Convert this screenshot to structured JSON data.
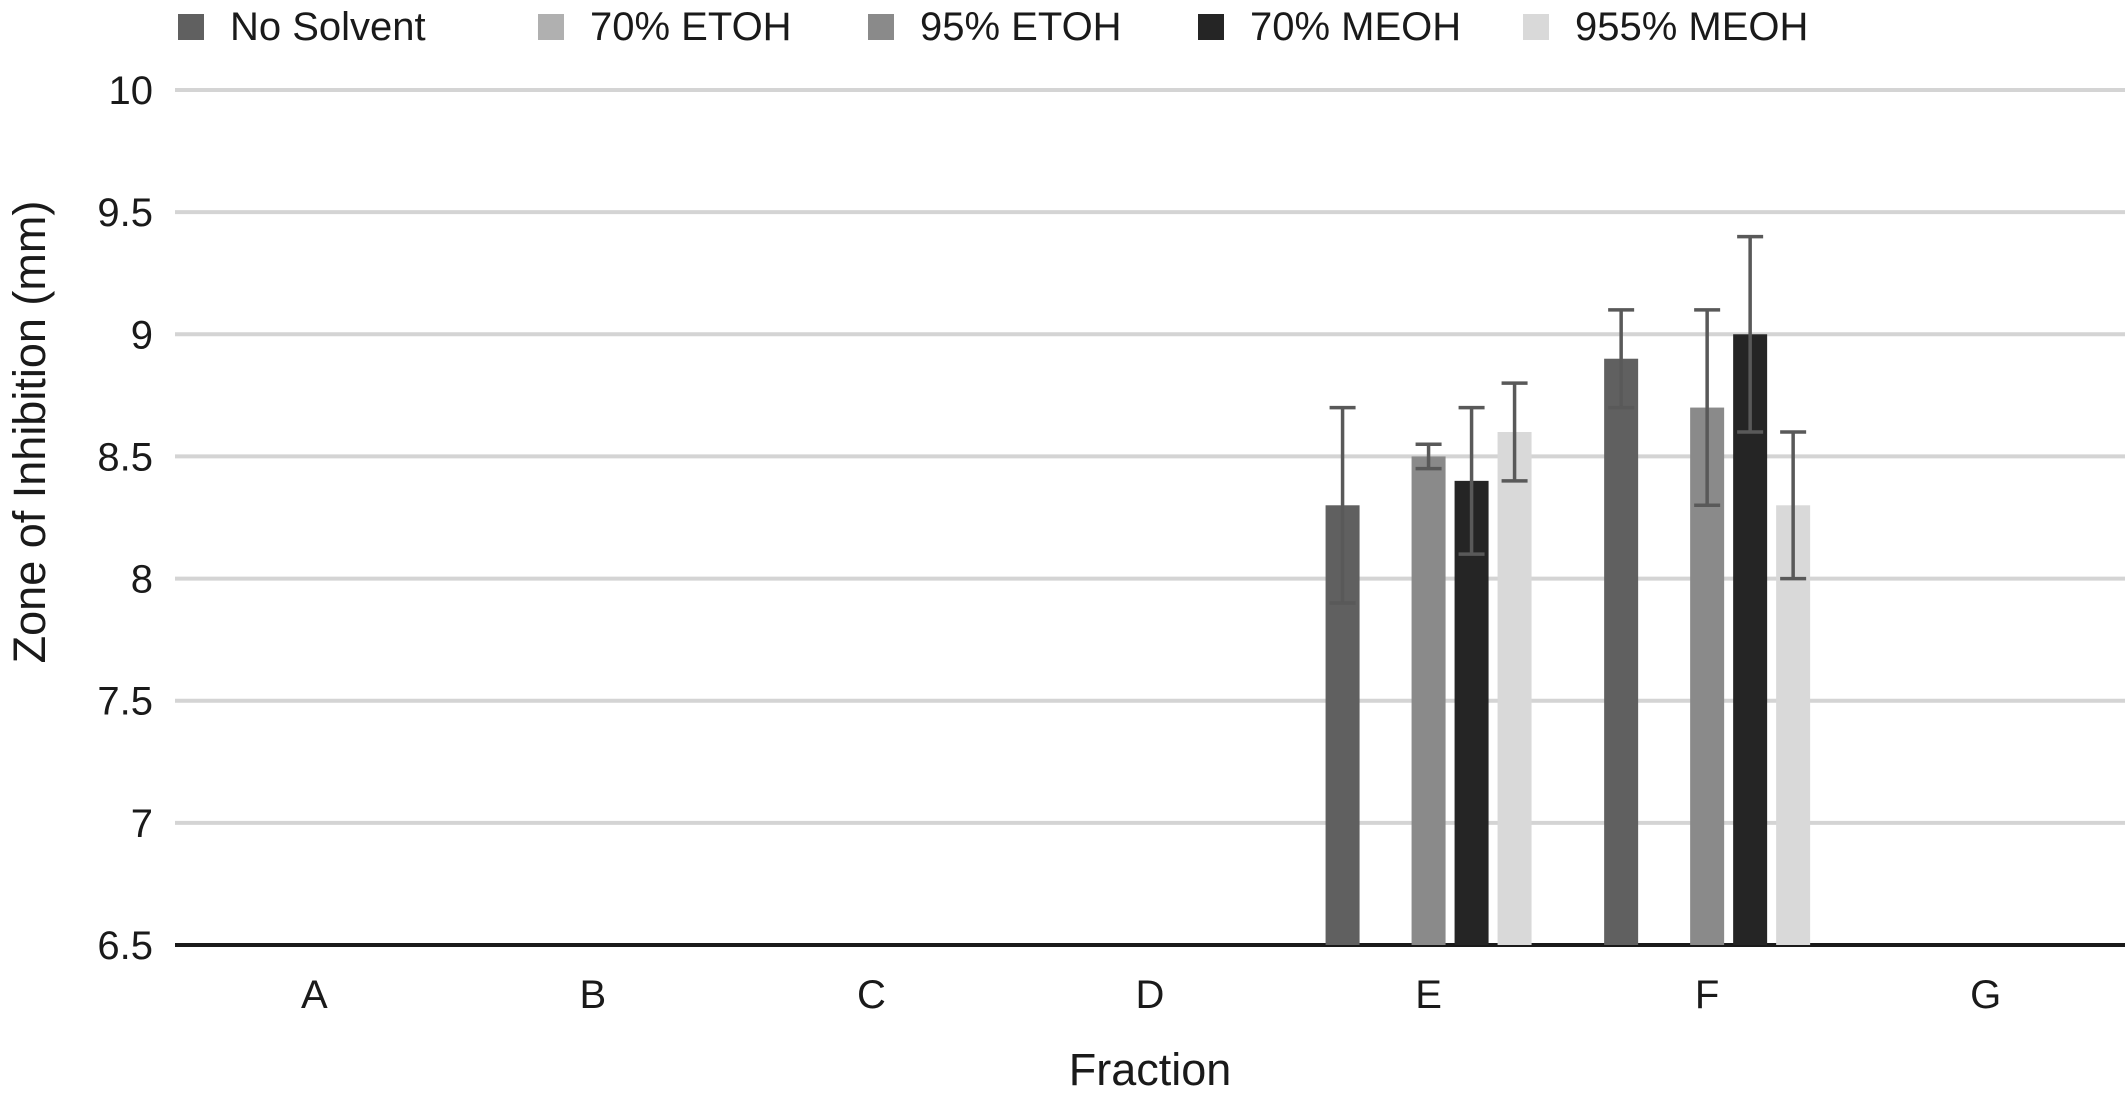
{
  "chart_data": {
    "type": "bar",
    "title": "",
    "xlabel": "Fraction",
    "ylabel": "Zone of Inhibition (mm)",
    "categories": [
      "A",
      "B",
      "C",
      "D",
      "E",
      "F",
      "G"
    ],
    "ylim": [
      6.5,
      10
    ],
    "yticks": [
      "6.5",
      "7",
      "7.5",
      "8",
      "8.5",
      "9",
      "9.5",
      "10"
    ],
    "grid": true,
    "legend_position": "top",
    "series": [
      {
        "name": "No Solvent",
        "color": "#606060",
        "values": [
          null,
          null,
          null,
          null,
          8.3,
          8.9,
          null
        ],
        "errors": [
          null,
          null,
          null,
          null,
          0.4,
          0.2,
          null
        ]
      },
      {
        "name": "70% ETOH",
        "color": "#b0b0b0",
        "values": [
          null,
          null,
          null,
          null,
          null,
          null,
          null
        ],
        "errors": [
          null,
          null,
          null,
          null,
          null,
          null,
          null
        ]
      },
      {
        "name": "95% ETOH",
        "color": "#8a8a8a",
        "values": [
          null,
          null,
          null,
          null,
          8.5,
          8.7,
          null
        ],
        "errors": [
          null,
          null,
          null,
          null,
          0.05,
          0.4,
          null
        ]
      },
      {
        "name": "70% MEOH",
        "color": "#252525",
        "values": [
          null,
          null,
          null,
          null,
          8.4,
          9.0,
          null
        ],
        "errors": [
          null,
          null,
          null,
          null,
          0.3,
          0.4,
          null
        ]
      },
      {
        "name": "955% MEOH",
        "color": "#d9d9d9",
        "values": [
          null,
          null,
          null,
          null,
          8.6,
          8.3,
          null
        ],
        "errors": [
          null,
          null,
          null,
          null,
          0.2,
          0.3,
          null
        ]
      }
    ]
  }
}
